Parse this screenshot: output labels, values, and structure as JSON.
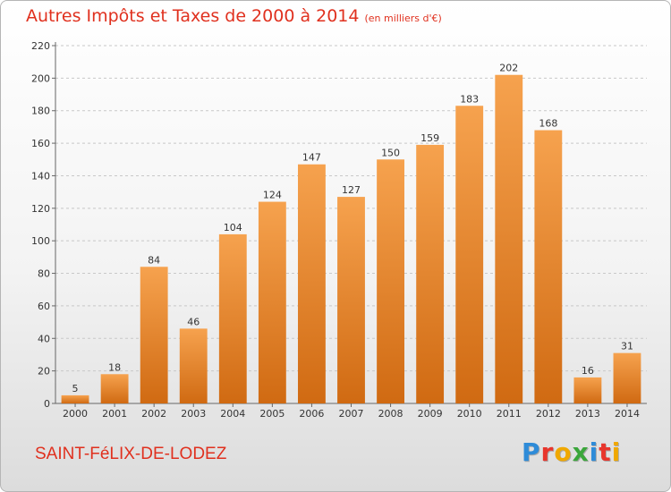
{
  "header": {
    "title": "Autres Impôts et Taxes de 2000 à 2014",
    "unit": "(en milliers d'€)"
  },
  "footer": {
    "commune": "SAINT-FéLIX-DE-LODEZ",
    "logo_letters": [
      "P",
      "r",
      "o",
      "x",
      "i",
      "t",
      "i"
    ],
    "logo_colors": [
      "#2e8bd8",
      "#e8352c",
      "#f0a800",
      "#3aa63a",
      "#2e8bd8",
      "#e8352c",
      "#f0a800"
    ]
  },
  "colors": {
    "bar_top": "#f6a24e",
    "bar_bottom": "#d06a12",
    "grid": "#c8c8c8",
    "accent": "#e0301e"
  },
  "chart_data": {
    "type": "bar",
    "categories": [
      "2000",
      "2001",
      "2002",
      "2003",
      "2004",
      "2005",
      "2006",
      "2007",
      "2008",
      "2009",
      "2010",
      "2011",
      "2012",
      "2013",
      "2014"
    ],
    "values": [
      5,
      18,
      84,
      46,
      104,
      124,
      147,
      127,
      150,
      159,
      183,
      202,
      168,
      16,
      31
    ],
    "title": "Autres Impôts et Taxes de 2000 à 2014",
    "ylabel": "",
    "xlabel": "",
    "ylim": [
      0,
      220
    ],
    "yticks": [
      0,
      20,
      40,
      60,
      80,
      100,
      120,
      140,
      160,
      180,
      200,
      220
    ],
    "grid": true,
    "data_labels": true
  }
}
